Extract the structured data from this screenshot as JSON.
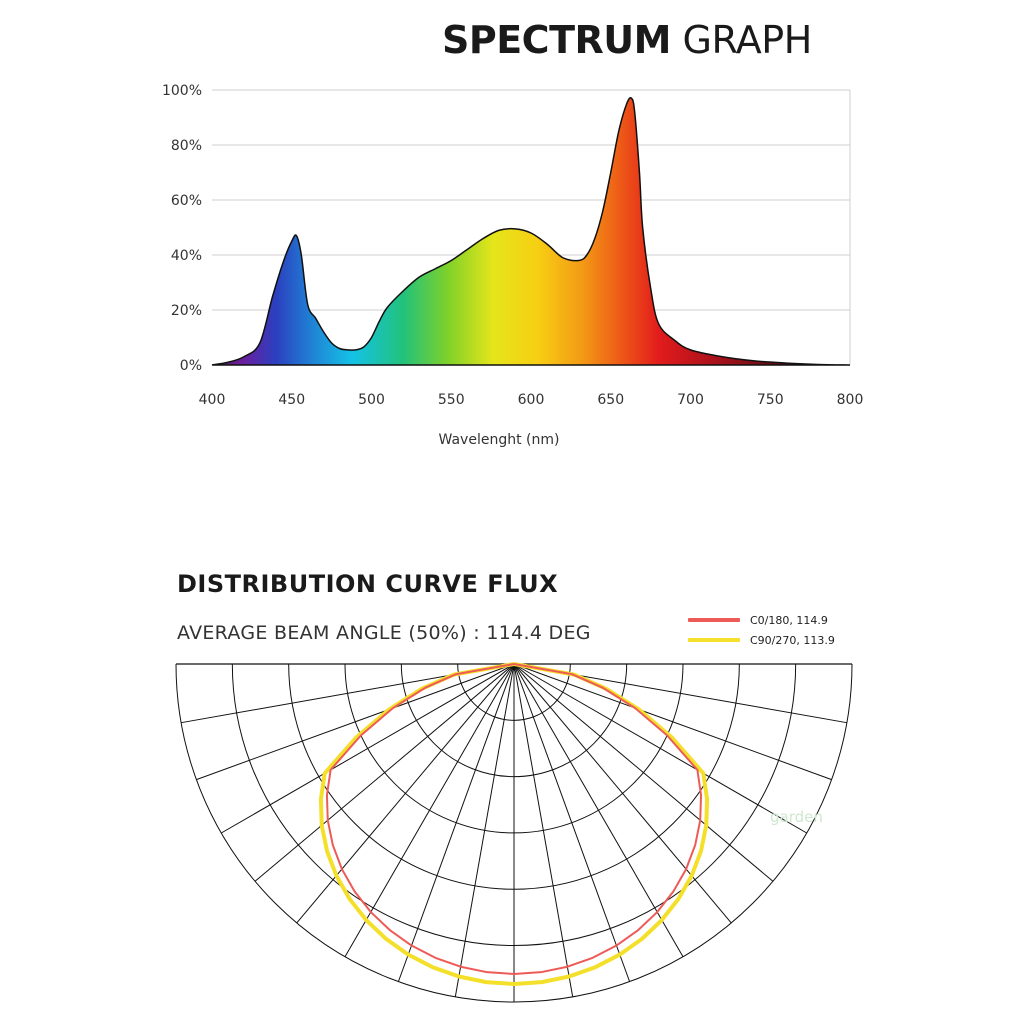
{
  "spectrum_title": {
    "bold": "SPECTRUM",
    "regular": " GRAPH"
  },
  "distribution": {
    "title": "DISTRIBUTION CURVE FLUX",
    "subtitle": "AVERAGE BEAM ANGLE  (50%) : 114.4 DEG"
  },
  "watermark": "garden",
  "chart_data": [
    {
      "type": "area",
      "title": "",
      "xlabel": "Wavelenght (nm)",
      "ylabel": "",
      "xlim": [
        400,
        800
      ],
      "ylim": [
        0,
        100
      ],
      "x_ticks": [
        "400",
        "450",
        "500",
        "550",
        "600",
        "650",
        "700",
        "750",
        "800"
      ],
      "y_ticks": [
        "0%",
        "20%",
        "40%",
        "60%",
        "80%",
        "100%"
      ],
      "grid": "horizontal",
      "series": [
        {
          "x": [
            400,
            410,
            420,
            430,
            438,
            445,
            450,
            453,
            456,
            460,
            465,
            470,
            475,
            480,
            485,
            490,
            495,
            500,
            505,
            510,
            520,
            530,
            540,
            550,
            560,
            570,
            580,
            590,
            600,
            610,
            620,
            630,
            635,
            640,
            645,
            650,
            655,
            660,
            663,
            665,
            668,
            670,
            675,
            680,
            690,
            700,
            720,
            740,
            760,
            780,
            800
          ],
          "values": [
            0,
            1,
            3,
            8,
            25,
            38,
            45,
            47,
            40,
            22,
            17,
            12,
            8,
            6,
            5.5,
            5.5,
            6.5,
            10,
            16,
            21,
            27,
            32,
            35,
            38,
            42,
            46,
            49,
            49.5,
            48,
            44,
            39,
            38,
            40,
            46,
            56,
            70,
            85,
            95,
            97,
            92,
            70,
            50,
            28,
            15,
            9,
            5.5,
            3,
            1.5,
            0.7,
            0.2,
            0
          ]
        }
      ]
    },
    {
      "type": "polar",
      "title": "",
      "series": [
        {
          "name": "C0/180, 114.9",
          "color": "#ee5b57"
        },
        {
          "name": "C90/270, 113.9",
          "color": "#f4e02a"
        }
      ]
    }
  ]
}
